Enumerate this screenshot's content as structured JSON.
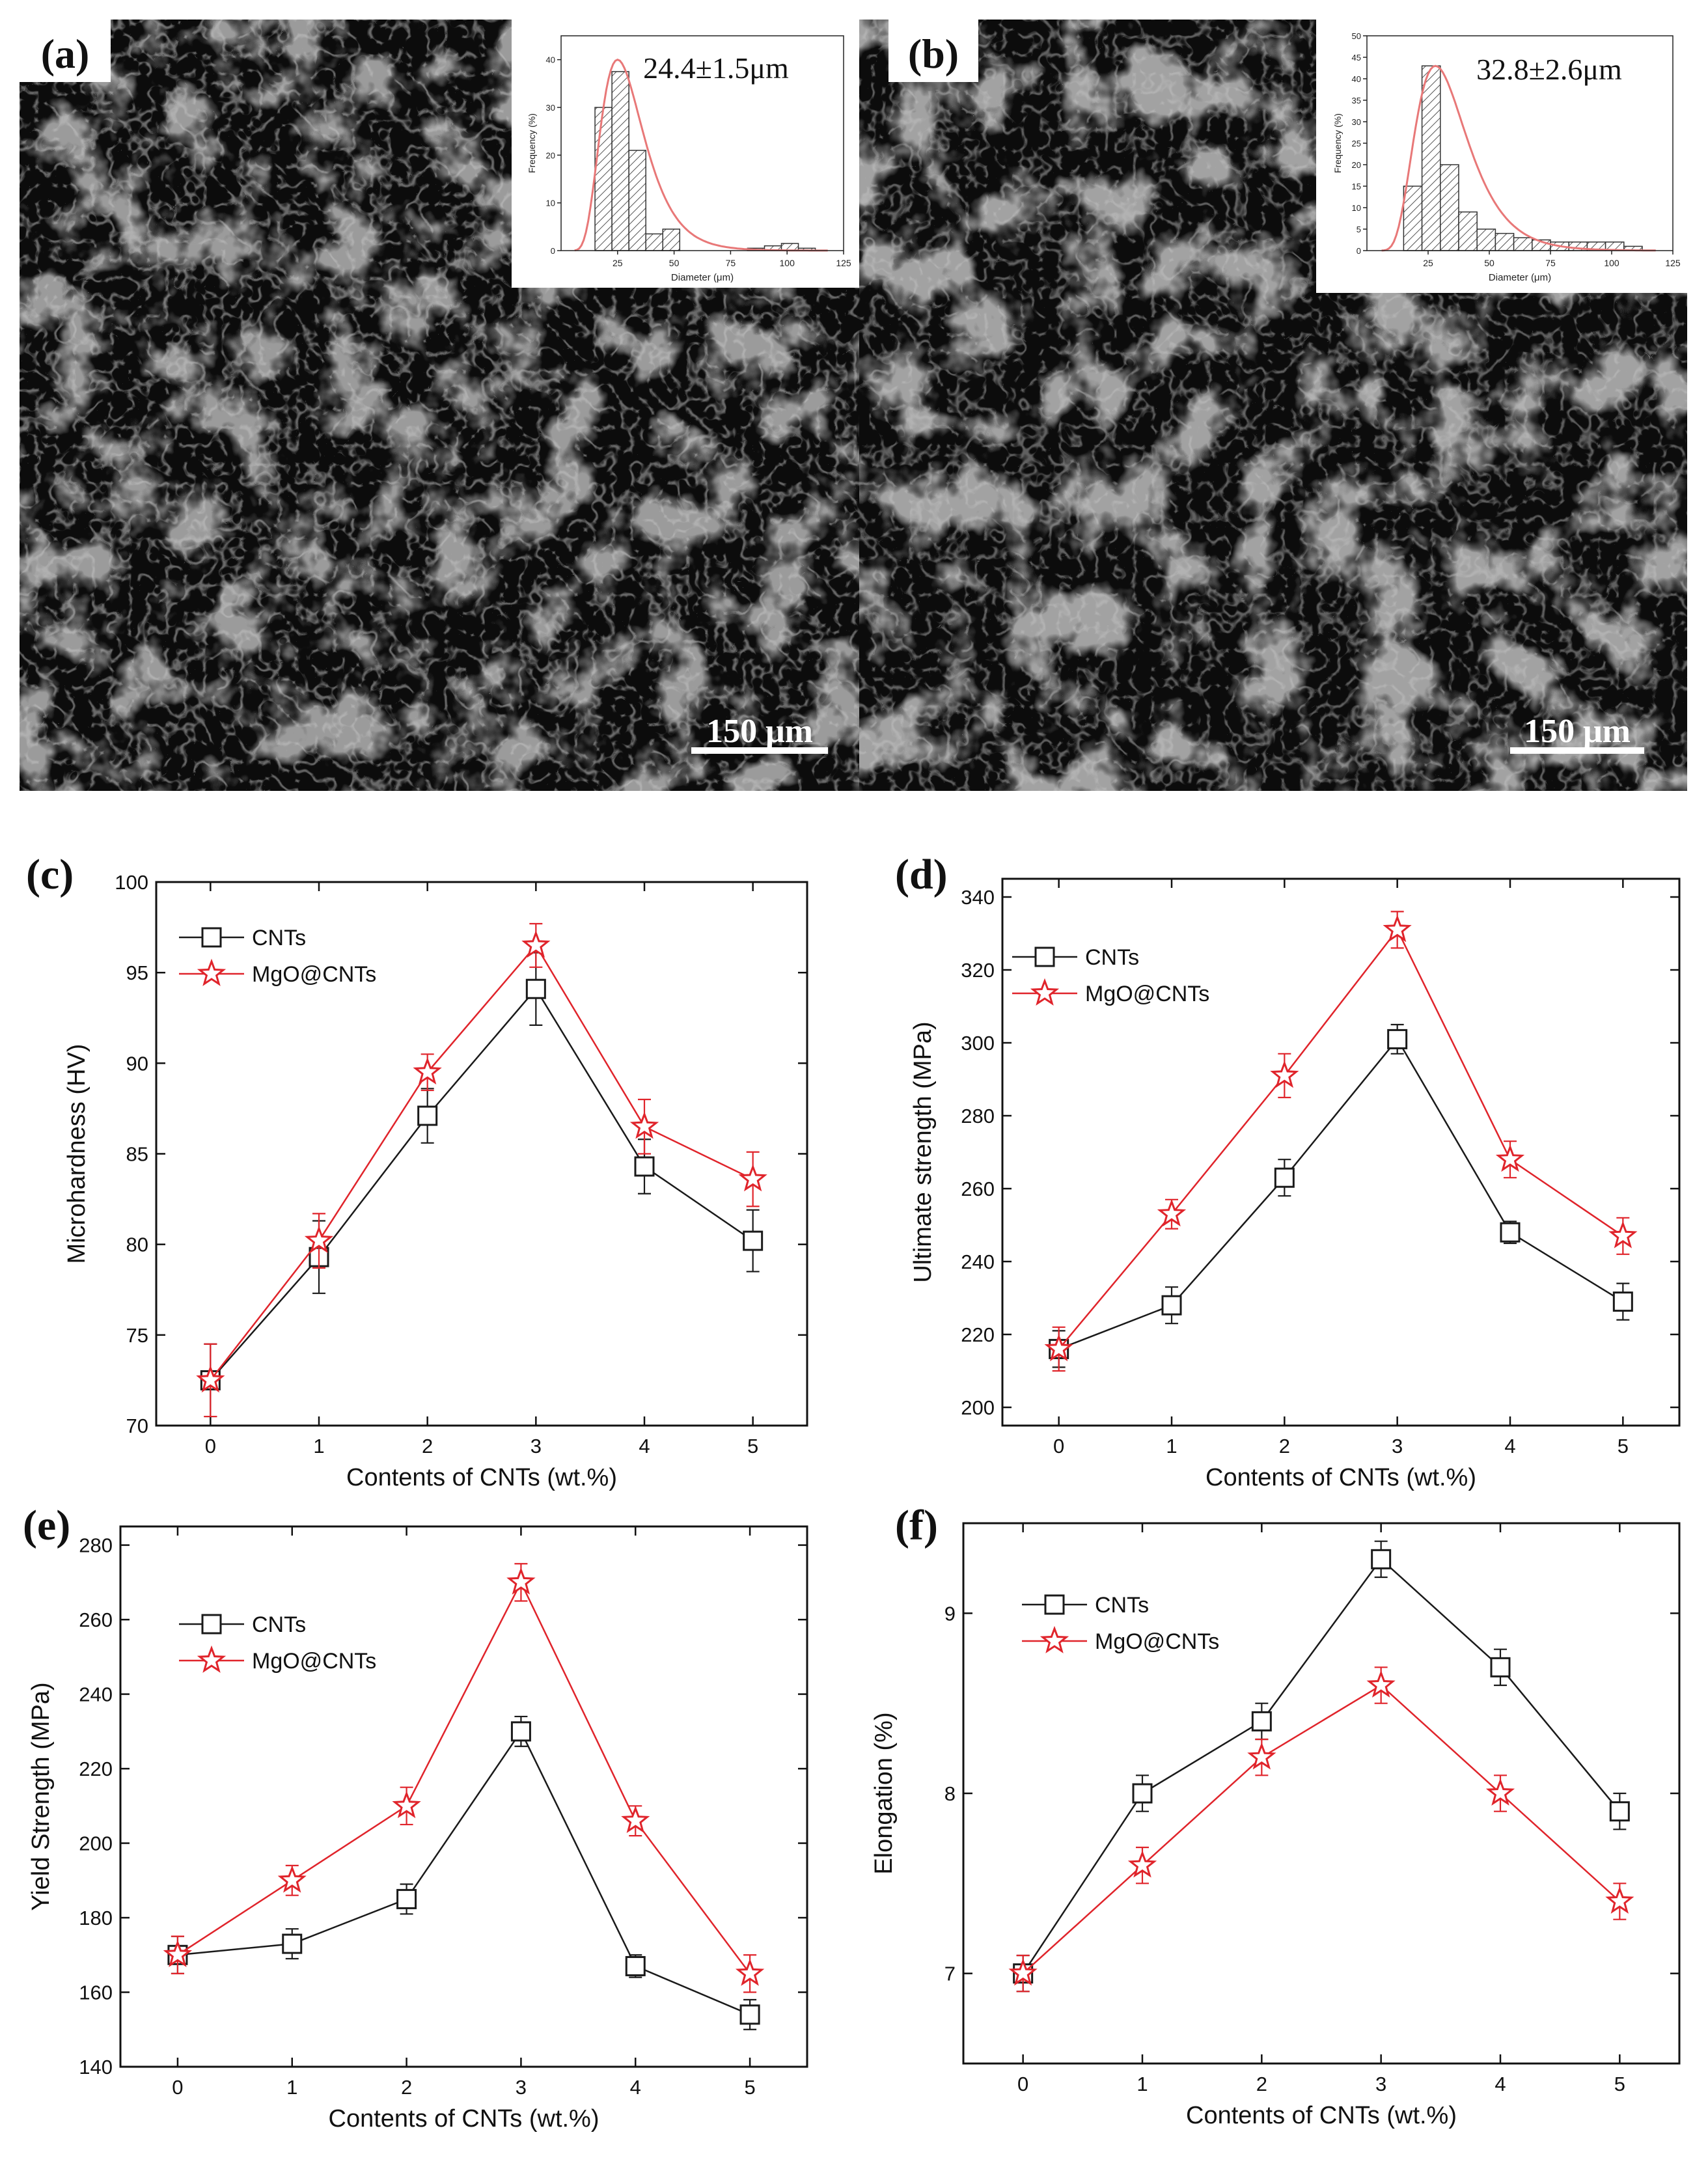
{
  "colors": {
    "cnts": "#1a1a1a",
    "mgo": "#e0242b",
    "fit": "#e87878",
    "micrograph_dark": "#0c0c0c",
    "micrograph_grain": "#9b9b9b",
    "background": "#ffffff"
  },
  "micrographs": [
    {
      "label": "(a)",
      "mean_size": "24.4±1.5μm",
      "scale_bar": "150 μm",
      "histogram": {
        "xlabel": "Diameter (μm)",
        "ylabel": "Frequency (%)",
        "xticks": [
          "25",
          "50",
          "75",
          "100",
          "125"
        ],
        "yticks": [
          "0",
          "10",
          "20",
          "30",
          "40"
        ],
        "xlim": [
          0,
          125
        ],
        "ylim": [
          0,
          45
        ],
        "bin_width": 7.5,
        "bins": [
          [
            15,
            30
          ],
          [
            22.5,
            37.5
          ],
          [
            30,
            21
          ],
          [
            37.5,
            3.5
          ],
          [
            45,
            4.5
          ],
          [
            52.5,
            0
          ],
          [
            60,
            0
          ],
          [
            67.5,
            0
          ],
          [
            75,
            0
          ],
          [
            82.5,
            0.5
          ],
          [
            90,
            1
          ],
          [
            97.5,
            1.5
          ],
          [
            105,
            0.5
          ]
        ],
        "fit_peak": 25,
        "fit_max": 40
      }
    },
    {
      "label": "(b)",
      "mean_size": "32.8±2.6μm",
      "scale_bar": "150 μm",
      "histogram": {
        "xlabel": "Diameter (μm)",
        "ylabel": "Frequency (%)",
        "xticks": [
          "25",
          "50",
          "75",
          "100",
          "125"
        ],
        "yticks": [
          "0",
          "5",
          "10",
          "15",
          "20",
          "25",
          "30",
          "35",
          "40",
          "45",
          "50"
        ],
        "xlim": [
          0,
          125
        ],
        "ylim": [
          0,
          50
        ],
        "bin_width": 7.5,
        "bins": [
          [
            15,
            15
          ],
          [
            22.5,
            43
          ],
          [
            30,
            20
          ],
          [
            37.5,
            9
          ],
          [
            45,
            5
          ],
          [
            52.5,
            4
          ],
          [
            60,
            3
          ],
          [
            67.5,
            2.5
          ],
          [
            75,
            2
          ],
          [
            82.5,
            2
          ],
          [
            90,
            2
          ],
          [
            97.5,
            2
          ],
          [
            105,
            1
          ]
        ],
        "fit_peak": 28,
        "fit_max": 43
      }
    }
  ],
  "chart_data": [
    {
      "panel": "(c)",
      "type": "line",
      "xlabel": "Contents of CNTs (wt.%)",
      "ylabel": "Microhardness (HV)",
      "x": [
        0,
        1,
        2,
        3,
        4,
        5
      ],
      "xlim": [
        -0.5,
        5.5
      ],
      "ylim": [
        70,
        100
      ],
      "yticks": [
        70,
        75,
        80,
        85,
        90,
        95,
        100
      ],
      "legend": "upper-left",
      "series": [
        {
          "name": "CNTs",
          "marker": "square",
          "values": [
            72.5,
            79.3,
            87.1,
            94.1,
            84.3,
            80.2
          ],
          "errors": [
            2.0,
            2.0,
            1.5,
            2.0,
            1.5,
            1.7
          ]
        },
        {
          "name": "MgO@CNTs",
          "marker": "star",
          "values": [
            72.5,
            80.2,
            89.5,
            96.5,
            86.5,
            83.6
          ],
          "errors": [
            2.0,
            1.5,
            1.0,
            1.2,
            1.5,
            1.5
          ]
        }
      ]
    },
    {
      "panel": "(d)",
      "type": "line",
      "xlabel": "Contents of CNTs (wt.%)",
      "ylabel": "Ultimate strength (MPa)",
      "x": [
        0,
        1,
        2,
        3,
        4,
        5
      ],
      "xlim": [
        -0.5,
        5.5
      ],
      "ylim": [
        195,
        345
      ],
      "yticks": [
        200,
        220,
        240,
        260,
        280,
        300,
        320,
        340
      ],
      "legend": "upper-left",
      "series": [
        {
          "name": "CNTs",
          "marker": "square",
          "values": [
            216,
            228,
            263,
            301,
            248,
            229
          ],
          "errors": [
            5,
            5,
            5,
            4,
            3,
            5
          ]
        },
        {
          "name": "MgO@CNTs",
          "marker": "star",
          "values": [
            216,
            253,
            291,
            331,
            268,
            247
          ],
          "errors": [
            6,
            4,
            6,
            5,
            5,
            5
          ]
        }
      ]
    },
    {
      "panel": "(e)",
      "type": "line",
      "xlabel": "Contents of CNTs (wt.%)",
      "ylabel": "Yield Strength (MPa)",
      "x": [
        0,
        1,
        2,
        3,
        4,
        5
      ],
      "xlim": [
        -0.5,
        5.5
      ],
      "ylim": [
        140,
        285
      ],
      "yticks": [
        140,
        160,
        180,
        200,
        220,
        240,
        260,
        280
      ],
      "legend": "upper-left",
      "series": [
        {
          "name": "CNTs",
          "marker": "square",
          "values": [
            170,
            173,
            185,
            230,
            167,
            154
          ],
          "errors": [
            5,
            4,
            4,
            4,
            3,
            4
          ]
        },
        {
          "name": "MgO@CNTs",
          "marker": "star",
          "values": [
            170,
            190,
            210,
            270,
            206,
            165
          ],
          "errors": [
            5,
            4,
            5,
            5,
            4,
            5
          ]
        }
      ]
    },
    {
      "panel": "(f)",
      "type": "line",
      "xlabel": "Contents of CNTs (wt.%)",
      "ylabel": "Elongation (%)",
      "x": [
        0,
        1,
        2,
        3,
        4,
        5
      ],
      "xlim": [
        -0.5,
        5.5
      ],
      "ylim": [
        6.5,
        9.5
      ],
      "yticks": [
        7,
        8,
        9
      ],
      "legend": "upper-left",
      "series": [
        {
          "name": "CNTs",
          "marker": "square",
          "values": [
            7.0,
            8.0,
            8.4,
            9.3,
            8.7,
            7.9
          ],
          "errors": [
            0.1,
            0.1,
            0.1,
            0.1,
            0.1,
            0.1
          ]
        },
        {
          "name": "MgO@CNTs",
          "marker": "star",
          "values": [
            7.0,
            7.6,
            8.2,
            8.6,
            8.0,
            7.4
          ],
          "errors": [
            0.1,
            0.1,
            0.1,
            0.1,
            0.1,
            0.1
          ]
        }
      ]
    }
  ]
}
